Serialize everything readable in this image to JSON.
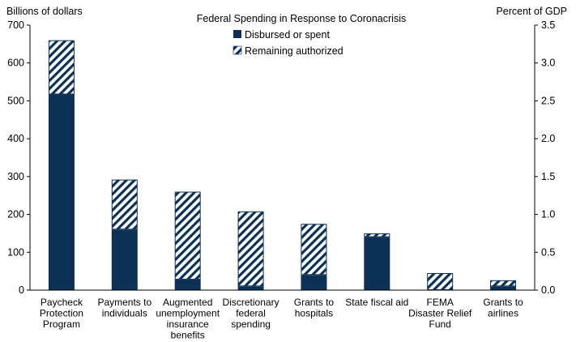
{
  "chart_data": {
    "type": "bar",
    "stacked": true,
    "title": "Federal Spending in Response to Coronacrisis",
    "ylabel_left": "Billions of dollars",
    "ylabel_right": "Percent of GDP",
    "ylim_left": [
      0,
      700
    ],
    "ylim_right": [
      0,
      3.5
    ],
    "yticks_left": [
      "0",
      "100",
      "200",
      "300",
      "400",
      "500",
      "600",
      "700"
    ],
    "yticks_right": [
      "0.0",
      "0.5",
      "1.0",
      "1.5",
      "2.0",
      "2.5",
      "3.0",
      "3.5"
    ],
    "legend_placement": "top-center",
    "categories": [
      [
        "Paycheck",
        "Protection",
        "Program"
      ],
      [
        "Payments to",
        "individuals"
      ],
      [
        "Augmented",
        "unemployment",
        "insurance",
        "benefits"
      ],
      [
        "Discretionary",
        "federal",
        "spending"
      ],
      [
        "Grants to",
        "hospitals"
      ],
      [
        "State fiscal aid"
      ],
      [
        "FEMA",
        "Disaster Relief",
        "Fund"
      ],
      [
        "Grants to",
        "airlines"
      ]
    ],
    "series": [
      {
        "name": "Disbursed or spent",
        "color": "#0d3154",
        "pattern": "solid",
        "values": [
          517,
          160,
          28,
          10,
          40,
          140,
          0,
          10
        ]
      },
      {
        "name": "Remaining authorized",
        "color": "#0d3154",
        "pattern": "diagonal-hatch",
        "values": [
          143,
          132,
          232,
          198,
          135,
          10,
          45,
          16
        ]
      }
    ]
  }
}
